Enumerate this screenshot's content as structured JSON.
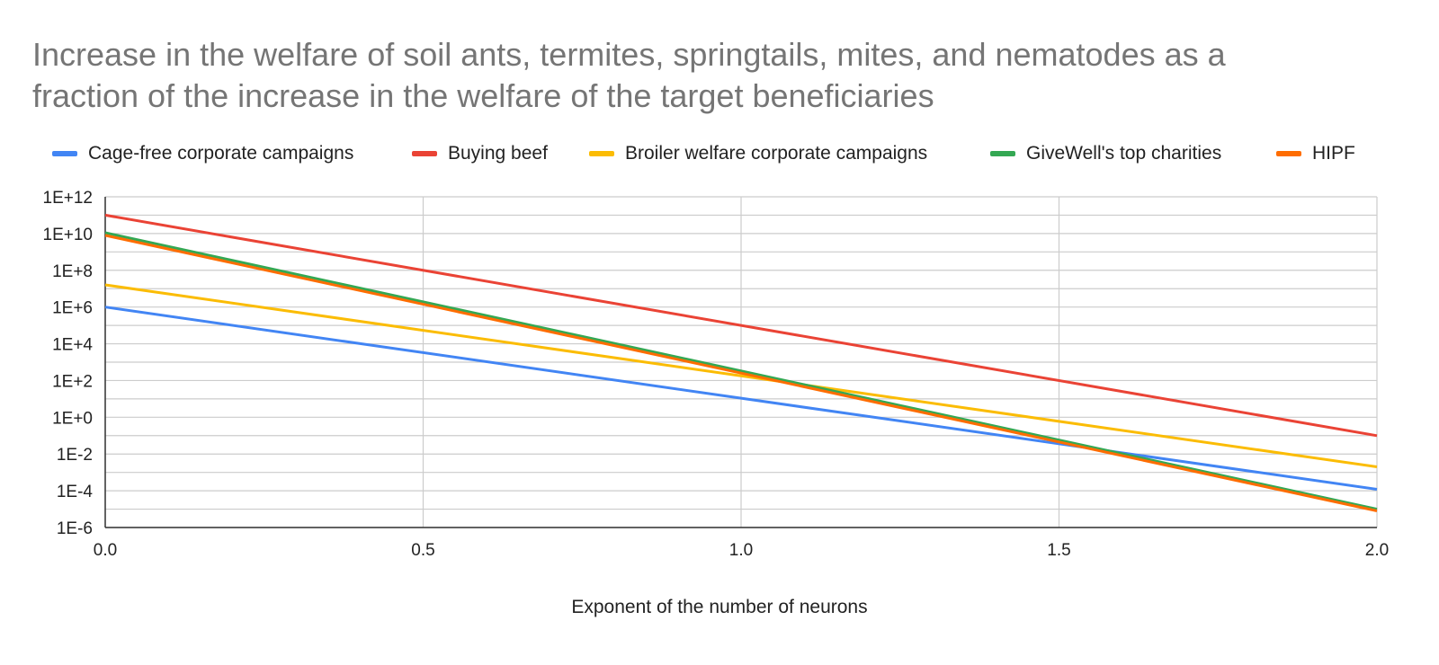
{
  "title_lines": [
    "Increase in the welfare of soil ants, termites, springtails, mites, and nematodes as a",
    "fraction of the increase in the welfare of the target beneficiaries"
  ],
  "chart_data": {
    "type": "line",
    "title": "Increase in the welfare of soil ants, termites, springtails, mites, and nematodes as a fraction of the increase in the welfare of the target beneficiaries",
    "xlabel": "Exponent of the number of neurons",
    "ylabel": "",
    "xlim": [
      0,
      2
    ],
    "ylim": [
      1e-06,
      1000000000000.0
    ],
    "yscale": "log",
    "grid": true,
    "legend_position": "top",
    "x_ticks": [
      "0.0",
      "0.5",
      "1.0",
      "1.5",
      "2.0"
    ],
    "y_ticks": [
      "1E-6",
      "1E-4",
      "1E-2",
      "1E+0",
      "1E+2",
      "1E+4",
      "1E+6",
      "1E+8",
      "1E+10",
      "1E+12"
    ],
    "series": [
      {
        "name": "Cage-free corporate campaigns",
        "color": "#4285f4",
        "x": [
          0,
          2
        ],
        "y": [
          1000000.0,
          0.00012
        ]
      },
      {
        "name": "Buying beef",
        "color": "#ea4335",
        "x": [
          0,
          2
        ],
        "y": [
          100000000000.0,
          0.1
        ]
      },
      {
        "name": "Broiler welfare corporate campaigns",
        "color": "#fbbc04",
        "x": [
          0,
          2
        ],
        "y": [
          16000000.0,
          0.002
        ]
      },
      {
        "name": "GiveWell's top charities",
        "color": "#34a853",
        "x": [
          0,
          2
        ],
        "y": [
          11000000000.0,
          1e-05
        ]
      },
      {
        "name": "HIPF",
        "color": "#ff6d01",
        "x": [
          0,
          2
        ],
        "y": [
          8000000000.0,
          8e-06
        ]
      }
    ]
  }
}
